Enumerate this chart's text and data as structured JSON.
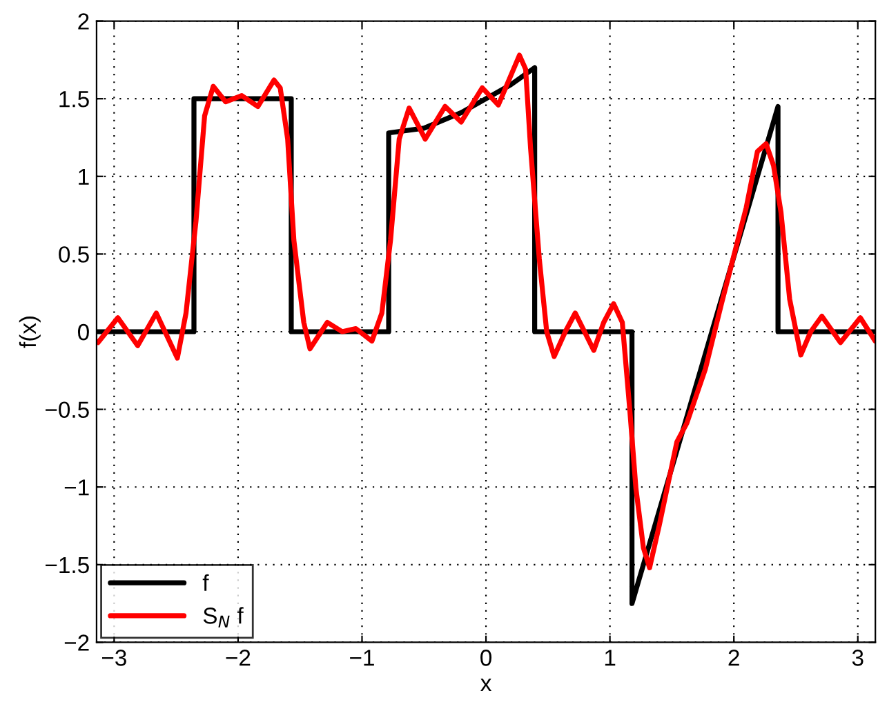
{
  "chart_data": {
    "type": "line",
    "xlabel": "x",
    "ylabel": "f(x)",
    "xlim": [
      -3.1416,
      3.1416
    ],
    "ylim": [
      -2,
      2
    ],
    "xticks": [
      -3,
      -2,
      -1,
      0,
      1,
      2,
      3
    ],
    "yticks": [
      -2,
      -1.5,
      -1,
      -0.5,
      0,
      0.5,
      1,
      1.5,
      2
    ],
    "grid": true,
    "legend": "bottom left",
    "line_style": "solid",
    "marker": "none",
    "series": [
      {
        "name": "f",
        "color": "#000000",
        "x": [
          -3.1416,
          -2.356,
          -2.356,
          -1.571,
          -1.571,
          -0.785,
          -0.785,
          -0.5,
          -0.2,
          0,
          0.2,
          0.393,
          0.393,
          1.178,
          1.178,
          2.356,
          2.356,
          3.1416
        ],
        "values": [
          0,
          0,
          1.5,
          1.5,
          0,
          0,
          1.28,
          1.31,
          1.41,
          1.5,
          1.59,
          1.7,
          0,
          0,
          -1.75,
          1.45,
          0,
          0
        ]
      },
      {
        "name": "S$_{N}$ f",
        "color": "#ff0000",
        "x": [
          -3.13,
          -2.97,
          -2.81,
          -2.66,
          -2.49,
          -2.42,
          -2.34,
          -2.27,
          -2.2,
          -2.1,
          -1.97,
          -1.84,
          -1.71,
          -1.66,
          -1.6,
          -1.55,
          -1.47,
          -1.42,
          -1.28,
          -1.16,
          -1.05,
          -0.92,
          -0.84,
          -0.77,
          -0.7,
          -0.62,
          -0.49,
          -0.33,
          -0.2,
          -0.03,
          0.1,
          0.27,
          0.32,
          0.36,
          0.43,
          0.49,
          0.55,
          0.64,
          0.72,
          0.87,
          0.95,
          1.03,
          1.1,
          1.16,
          1.21,
          1.27,
          1.32,
          1.4,
          1.54,
          1.62,
          1.77,
          1.9,
          2.1,
          2.19,
          2.26,
          2.32,
          2.38,
          2.45,
          2.54,
          2.62,
          2.71,
          2.86,
          3.02,
          3.14
        ],
        "values": [
          -0.07,
          0.09,
          -0.09,
          0.12,
          -0.17,
          0.12,
          0.71,
          1.39,
          1.58,
          1.48,
          1.52,
          1.45,
          1.62,
          1.57,
          1.24,
          0.59,
          0.06,
          -0.11,
          0.06,
          0,
          0.02,
          -0.06,
          0.12,
          0.59,
          1.24,
          1.44,
          1.24,
          1.45,
          1.35,
          1.57,
          1.46,
          1.78,
          1.69,
          1.18,
          0.47,
          0,
          -0.16,
          0,
          0.12,
          -0.12,
          0.06,
          0.18,
          0.06,
          -0.5,
          -1.01,
          -1.39,
          -1.52,
          -1.24,
          -0.71,
          -0.59,
          -0.24,
          0.18,
          0.8,
          1.16,
          1.21,
          1.07,
          0.77,
          0.21,
          -0.15,
          0,
          0.1,
          -0.07,
          0.09,
          -0.06
        ]
      }
    ]
  }
}
